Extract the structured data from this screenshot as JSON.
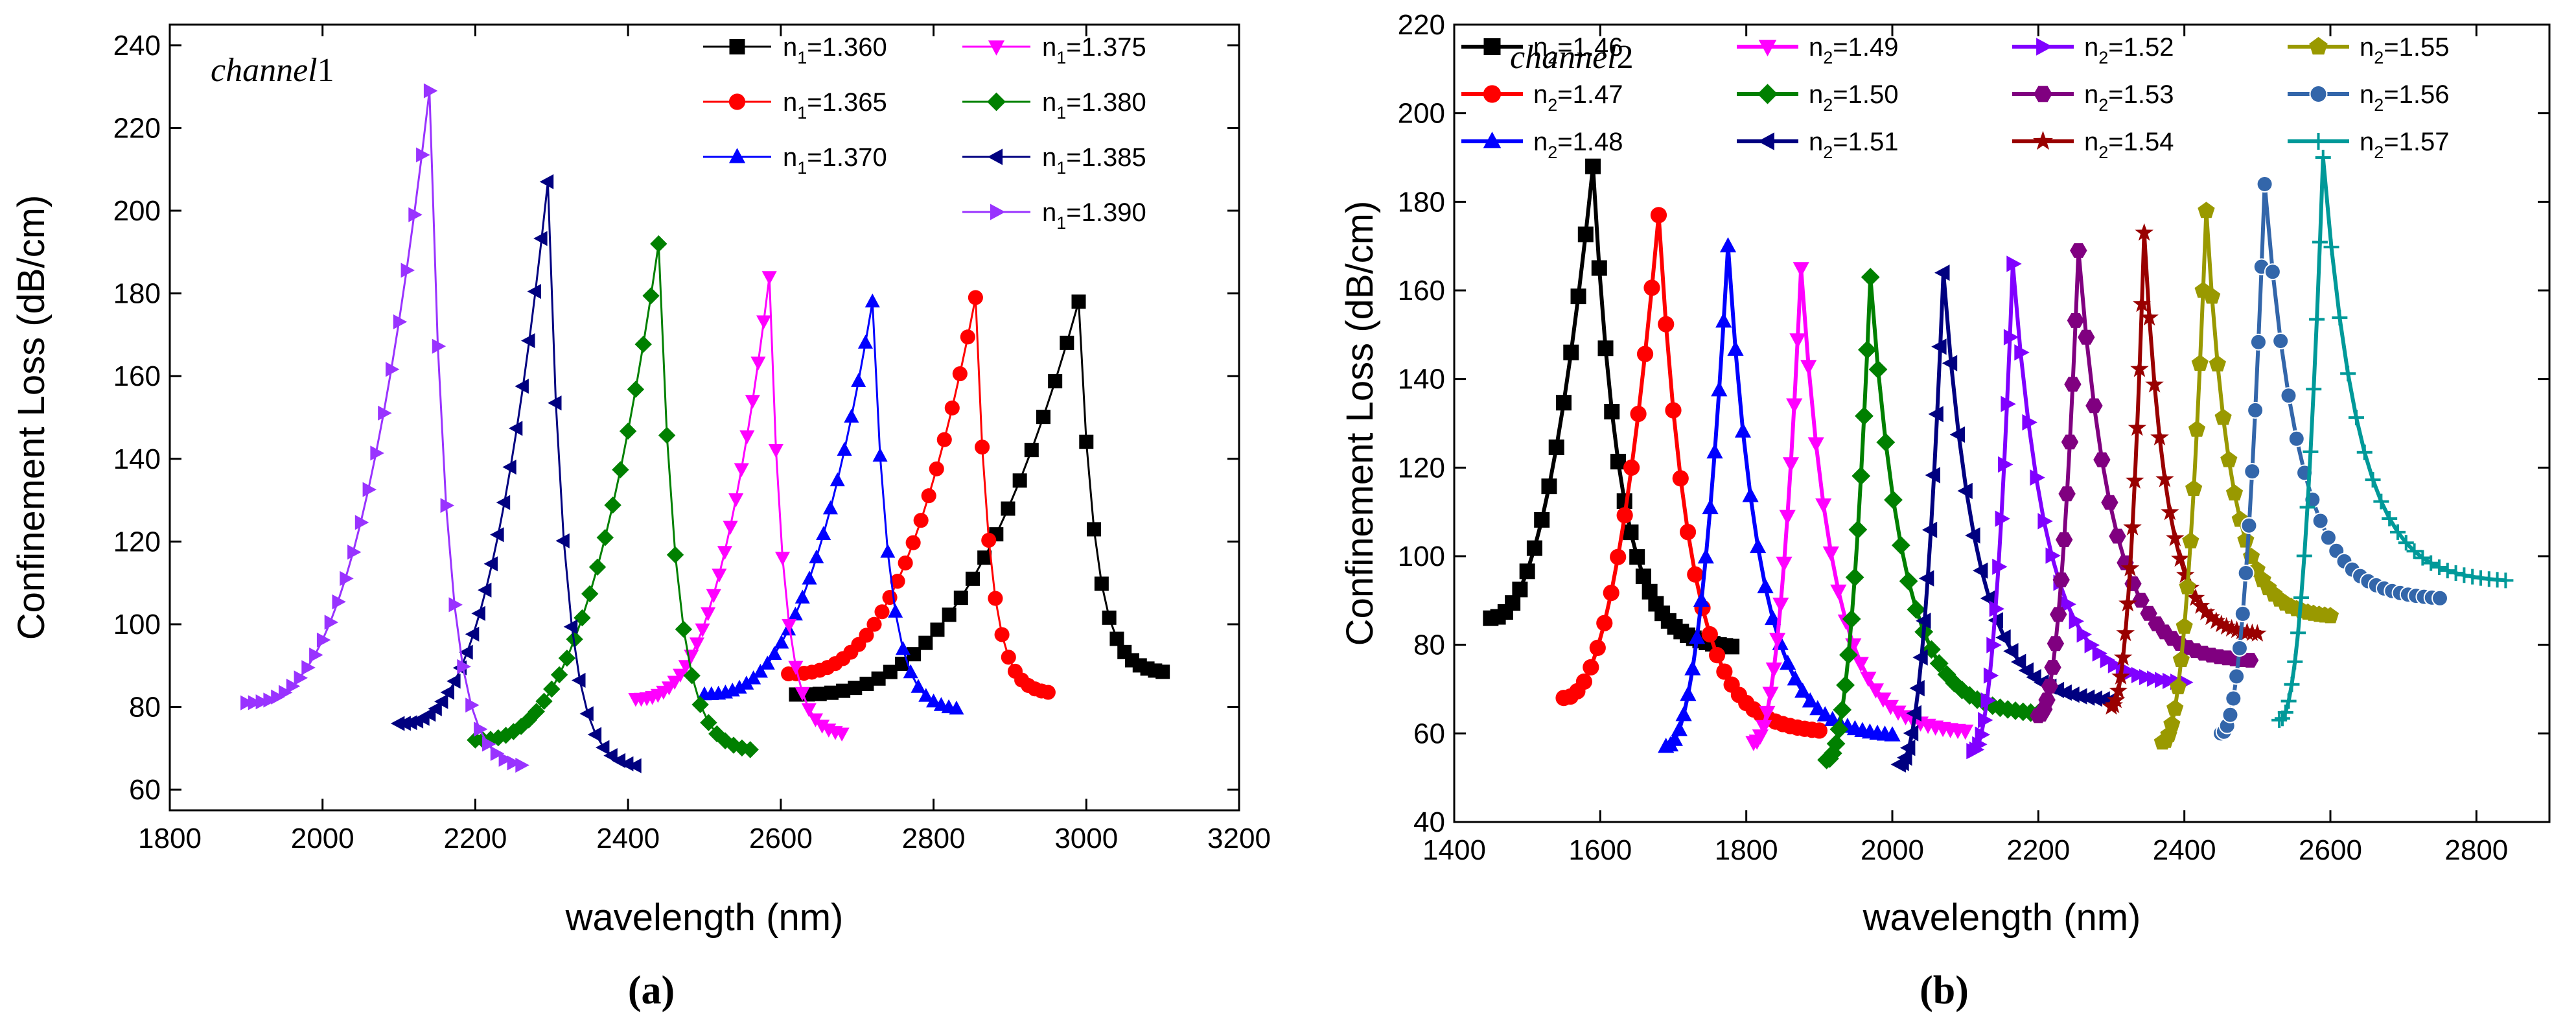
{
  "chart_data": [
    {
      "type": "line",
      "panel": "(a)",
      "annotation": "channel",
      "annotation_suffix": "1",
      "xlabel": "wavelength (nm)",
      "ylabel": "Confinement  Loss (dB/cm)",
      "xlim": [
        1800,
        3200
      ],
      "ylim": [
        55,
        245
      ],
      "xticks": [
        1800,
        2000,
        2200,
        2400,
        2600,
        2800,
        3000,
        3200
      ],
      "yticks": [
        60,
        80,
        100,
        120,
        140,
        160,
        180,
        200,
        220,
        240
      ],
      "legend_location": "top-right",
      "legend_columns": 2,
      "series": [
        {
          "name": "n1=1.360",
          "label_base": "n",
          "label_sub": "1",
          "label_value": "=1.360",
          "color": "#000000",
          "marker": "square",
          "peak": [
            2990,
            178
          ],
          "left_start": [
            2620,
            83
          ],
          "right_end": [
            3100,
            88
          ]
        },
        {
          "name": "n1=1.365",
          "label_base": "n",
          "label_sub": "1",
          "label_value": "=1.365",
          "color": "#ff0000",
          "marker": "circle",
          "peak": [
            2855,
            179
          ],
          "left_start": [
            2610,
            88
          ],
          "right_end": [
            2950,
            83
          ]
        },
        {
          "name": "n1=1.370",
          "label_base": "n",
          "label_sub": "1",
          "label_value": "=1.370",
          "color": "#0000ff",
          "marker": "triangle-up",
          "peak": [
            2720,
            178
          ],
          "left_start": [
            2500,
            83
          ],
          "right_end": [
            2830,
            79
          ]
        },
        {
          "name": "n1=1.375",
          "label_base": "n",
          "label_sub": "1",
          "label_value": "=1.375",
          "color": "#ff00ff",
          "marker": "triangle-down",
          "peak": [
            2585,
            184
          ],
          "left_start": [
            2410,
            82
          ],
          "right_end": [
            2680,
            73
          ]
        },
        {
          "name": "n1=1.380",
          "label_base": "n",
          "label_sub": "1",
          "label_value": "=1.380",
          "color": "#008000",
          "marker": "diamond",
          "peak": [
            2440,
            192
          ],
          "left_start": [
            2200,
            72
          ],
          "right_end": [
            2560,
            69
          ]
        },
        {
          "name": "n1=1.385",
          "label_base": "n",
          "label_sub": "1",
          "label_value": "=1.385",
          "color": "#000080",
          "marker": "triangle-left",
          "peak": [
            2295,
            207
          ],
          "left_start": [
            2100,
            76
          ],
          "right_end": [
            2410,
            65
          ]
        },
        {
          "name": "n1=1.390",
          "label_base": "n",
          "label_sub": "1",
          "label_value": "=1.390",
          "color": "#9933ff",
          "marker": "triangle-right",
          "peak": [
            2140,
            229
          ],
          "left_start": [
            1900,
            81
          ],
          "right_end": [
            2260,
            65
          ]
        }
      ]
    },
    {
      "type": "line",
      "panel": "(b)",
      "annotation": "channel",
      "annotation_suffix": "2",
      "xlabel": "wavelength (nm)",
      "ylabel": "Confinement  Loss (dB/cm)",
      "xlim": [
        1400,
        2900
      ],
      "ylim": [
        40,
        220
      ],
      "xticks": [
        1400,
        1600,
        1800,
        2000,
        2200,
        2400,
        2600,
        2800
      ],
      "yticks": [
        40,
        60,
        80,
        100,
        120,
        140,
        160,
        180,
        200,
        220
      ],
      "legend_location": "top",
      "legend_columns": 4,
      "series": [
        {
          "name": "n2=1.46",
          "label_base": "n",
          "label_sub": "2",
          "label_value": "=1.46",
          "color": "#000000",
          "marker": "square",
          "peak": [
            1590,
            188
          ],
          "left_start": [
            1450,
            86
          ],
          "right_end": [
            1780,
            79
          ]
        },
        {
          "name": "n2=1.47",
          "label_base": "n",
          "label_sub": "2",
          "label_value": "=1.47",
          "color": "#ff0000",
          "marker": "circle",
          "peak": [
            1680,
            177
          ],
          "left_start": [
            1550,
            68
          ],
          "right_end": [
            1900,
            60
          ]
        },
        {
          "name": "n2=1.48",
          "label_base": "n",
          "label_sub": "2",
          "label_value": "=1.48",
          "color": "#0000ff",
          "marker": "triangle-up",
          "peak": [
            1775,
            170
          ],
          "left_start": [
            1690,
            57
          ],
          "right_end": [
            2000,
            59
          ]
        },
        {
          "name": "n2=1.49",
          "label_base": "n",
          "label_sub": "2",
          "label_value": "=1.49",
          "color": "#ff00ff",
          "marker": "triangle-down",
          "peak": [
            1875,
            165
          ],
          "left_start": [
            1810,
            58
          ],
          "right_end": [
            2100,
            60
          ]
        },
        {
          "name": "n2=1.50",
          "label_base": "n",
          "label_sub": "2",
          "label_value": "=1.50",
          "color": "#008000",
          "marker": "diamond",
          "peak": [
            1970,
            163
          ],
          "left_start": [
            1910,
            54
          ],
          "right_end": [
            2200,
            64
          ]
        },
        {
          "name": "n2=1.51",
          "label_base": "n",
          "label_sub": "2",
          "label_value": "=1.51",
          "color": "#000080",
          "marker": "triangle-left",
          "peak": [
            2070,
            164
          ],
          "left_start": [
            2010,
            53
          ],
          "right_end": [
            2300,
            67
          ]
        },
        {
          "name": "n2=1.52",
          "label_base": "n",
          "label_sub": "2",
          "label_value": "=1.52",
          "color": "#8000ff",
          "marker": "triangle-right",
          "peak": [
            2165,
            166
          ],
          "left_start": [
            2110,
            56
          ],
          "right_end": [
            2400,
            71
          ]
        },
        {
          "name": "n2=1.53",
          "label_base": "n",
          "label_sub": "2",
          "label_value": "=1.53",
          "color": "#800080",
          "marker": "hexagon",
          "peak": [
            2255,
            169
          ],
          "left_start": [
            2200,
            64
          ],
          "right_end": [
            2490,
            76
          ]
        },
        {
          "name": "n2=1.54",
          "label_base": "n",
          "label_sub": "2",
          "label_value": "=1.54",
          "color": "#990000",
          "marker": "star",
          "peak": [
            2345,
            173
          ],
          "left_start": [
            2300,
            66
          ],
          "right_end": [
            2500,
            82
          ]
        },
        {
          "name": "n2=1.55",
          "label_base": "n",
          "label_sub": "2",
          "label_value": "=1.55",
          "color": "#999900",
          "marker": "pentagon",
          "peak": [
            2430,
            178
          ],
          "left_start": [
            2370,
            58
          ],
          "right_end": [
            2600,
            86
          ]
        },
        {
          "name": "n2=1.56",
          "label_base": "n",
          "label_sub": "2",
          "label_value": "=1.56",
          "color": "#3366aa",
          "marker": "sphere",
          "peak": [
            2510,
            184
          ],
          "left_start": [
            2450,
            60
          ],
          "right_end": [
            2750,
            90
          ]
        },
        {
          "name": "n2=1.57",
          "label_base": "n",
          "label_sub": "2",
          "label_value": "=1.57",
          "color": "#009999",
          "marker": "plus",
          "peak": [
            2590,
            190
          ],
          "left_start": [
            2530,
            63
          ],
          "right_end": [
            2840,
            94
          ]
        }
      ]
    }
  ]
}
